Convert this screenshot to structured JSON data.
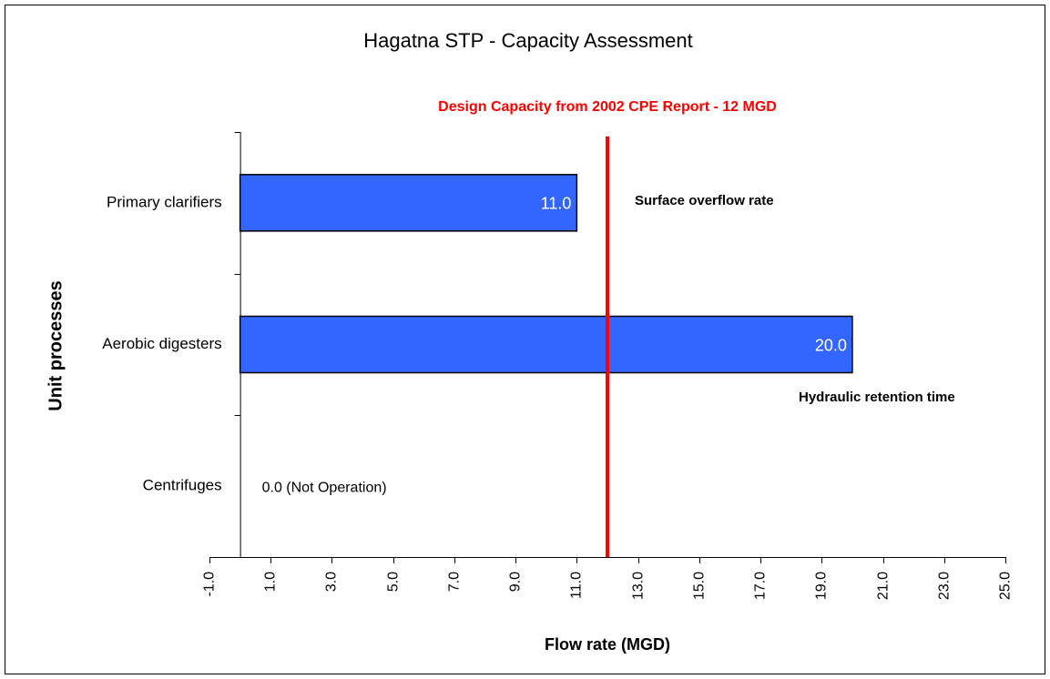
{
  "chart_data": {
    "type": "barh",
    "title": "Hagatna STP - Capacity Assessment",
    "xlabel": "Flow rate (MGD)",
    "ylabel": "Unit processes",
    "categories": [
      "Primary clarifiers",
      "Aerobic digesters",
      "Centrifuges"
    ],
    "values": [
      11,
      20,
      0
    ],
    "value_labels": [
      "11.0",
      "20.0",
      "0.0 (Not Operation)"
    ],
    "color": "#3366ff",
    "xlim": [
      -1,
      25
    ],
    "xticks": [
      {
        "value": -1,
        "label": "-1.0"
      },
      {
        "value": 1,
        "label": "1.0"
      },
      {
        "value": 3,
        "label": "3.0"
      },
      {
        "value": 5,
        "label": "5.0"
      },
      {
        "value": 7,
        "label": "7.0"
      },
      {
        "value": 9,
        "label": "9.0"
      },
      {
        "value": 11,
        "label": "11.0"
      },
      {
        "value": 13,
        "label": "13.0"
      },
      {
        "value": 15,
        "label": "15.0"
      },
      {
        "value": 17,
        "label": "17.0"
      },
      {
        "value": 19,
        "label": "19.0"
      },
      {
        "value": 21,
        "label": "21.0"
      },
      {
        "value": 23,
        "label": "23.0"
      },
      {
        "value": 25,
        "label": "25.0"
      }
    ],
    "reference_line": {
      "value": 12,
      "label": "Design Capacity from 2002 CPE Report - 12 MGD",
      "color": "#ff0000"
    },
    "annotations": [
      "Surface overflow rate",
      "Hydraulic retention time"
    ]
  }
}
